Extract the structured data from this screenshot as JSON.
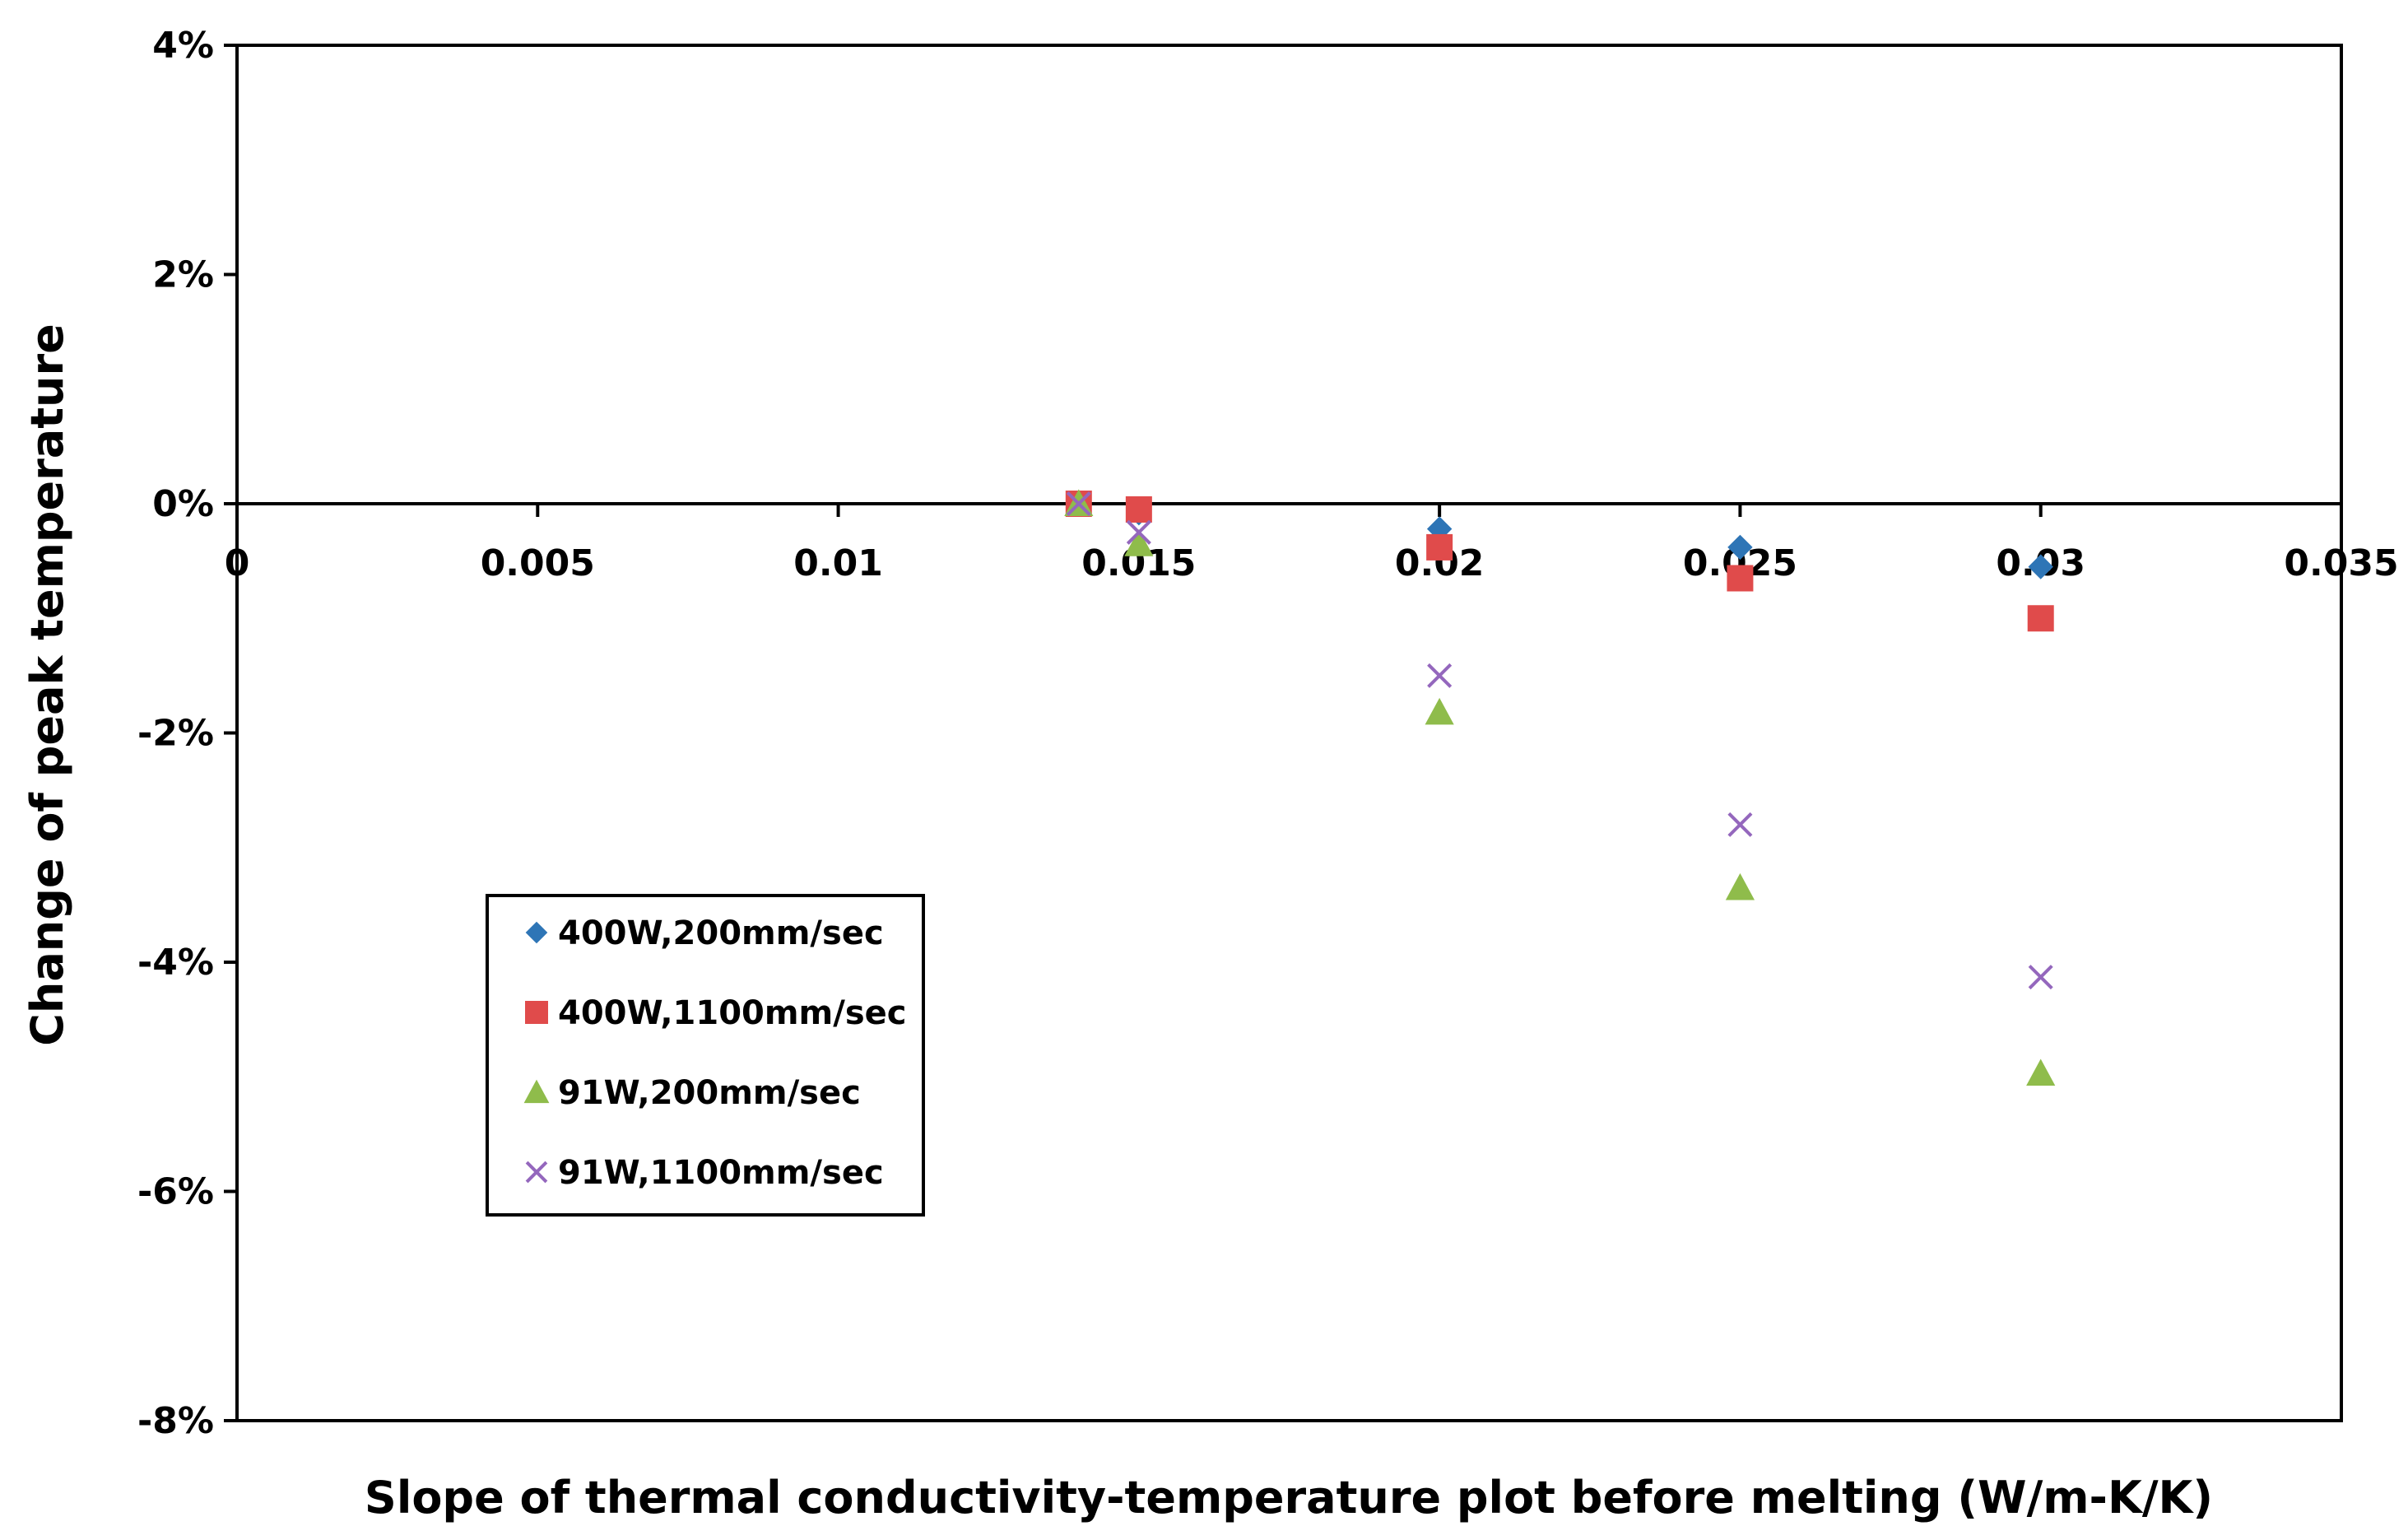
{
  "chart_data": {
    "type": "scatter",
    "title": "",
    "xlabel": "Slope of thermal conductivity-temperature plot before melting (W/m-K/K)",
    "ylabel": "Change of peak temperature",
    "xlim": [
      0,
      0.035
    ],
    "ylim": [
      -0.08,
      0.04
    ],
    "x_ticks": [
      0,
      0.005,
      0.01,
      0.015,
      0.02,
      0.025,
      0.03,
      0.035
    ],
    "x_tick_labels": [
      "0",
      "0.005",
      "0.01",
      "0.015",
      "0.02",
      "0.025",
      "0.03",
      "0.035"
    ],
    "y_ticks": [
      0.04,
      0.02,
      0,
      -0.02,
      -0.04,
      -0.06,
      -0.08
    ],
    "y_tick_labels": [
      "4%",
      "2%",
      "0%",
      "-2%",
      "-4%",
      "-6%",
      "-8%"
    ],
    "grid": false,
    "legend_position": "lower-left",
    "series": [
      {
        "name": "400W,200mm/sec",
        "marker": "diamond",
        "color": "#2E75B6",
        "points": [
          [
            0.014,
            0.0
          ],
          [
            0.015,
            -0.0008
          ],
          [
            0.02,
            -0.0022
          ],
          [
            0.025,
            -0.0038
          ],
          [
            0.03,
            -0.0055
          ]
        ]
      },
      {
        "name": "400W,1100mm/sec",
        "marker": "square",
        "color": "#E04B4B",
        "points": [
          [
            0.014,
            0.0
          ],
          [
            0.015,
            -0.0005
          ],
          [
            0.02,
            -0.0038
          ],
          [
            0.025,
            -0.0065
          ],
          [
            0.03,
            -0.01
          ]
        ]
      },
      {
        "name": "91W,200mm/sec",
        "marker": "triangle",
        "color": "#8FBC4B",
        "points": [
          [
            0.014,
            0.0
          ],
          [
            0.015,
            -0.0035
          ],
          [
            0.02,
            -0.0182
          ],
          [
            0.025,
            -0.0335
          ],
          [
            0.03,
            -0.0497
          ]
        ]
      },
      {
        "name": "91W,1100mm/sec",
        "marker": "x",
        "color": "#9467BD",
        "points": [
          [
            0.014,
            0.0
          ],
          [
            0.015,
            -0.0025
          ],
          [
            0.02,
            -0.015
          ],
          [
            0.025,
            -0.028
          ],
          [
            0.03,
            -0.0413
          ]
        ]
      }
    ]
  }
}
